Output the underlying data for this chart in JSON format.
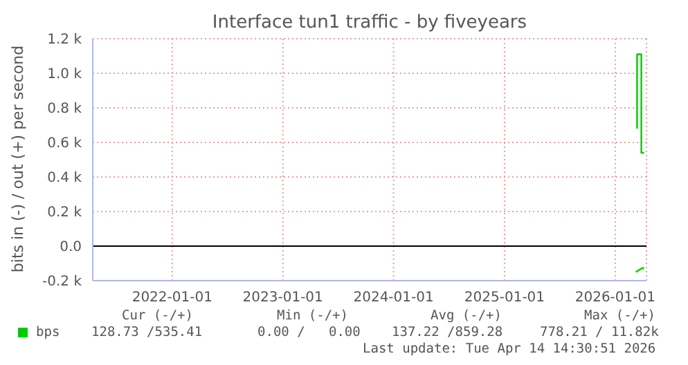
{
  "chart_data": {
    "type": "line",
    "title": "Interface tun1 traffic - by fiveyears",
    "ylabel": "bits in (-) / out (+) per second",
    "series": [
      {
        "name": "bps",
        "color": "#00cc00",
        "x": [
          "2026-03-14",
          "2026-03-14",
          "2026-03-28",
          "2026-03-28",
          "2026-04-06"
        ],
        "values": [
          680,
          1110,
          1110,
          540,
          540
        ]
      },
      {
        "color": "#00cc00",
        "x": [
          "2026-03-10",
          "2026-03-28",
          "2026-04-06"
        ],
        "values": [
          -150,
          -130,
          -125
        ]
      }
    ],
    "xlim": [
      "2021-04-14",
      "2026-04-14"
    ],
    "xticks": [
      "2022-01-01",
      "2023-01-01",
      "2024-01-01",
      "2025-01-01",
      "2026-01-01"
    ],
    "ylim": [
      -200,
      1200
    ],
    "yticks": [
      {
        "value": -200,
        "label": "-0.2 k"
      },
      {
        "value": 0,
        "label": "0.0"
      },
      {
        "value": 200,
        "label": "0.2 k"
      },
      {
        "value": 400,
        "label": "0.4 k"
      },
      {
        "value": 600,
        "label": "0.6 k"
      },
      {
        "value": 800,
        "label": "0.8 k"
      },
      {
        "value": 1000,
        "label": "1.0 k"
      },
      {
        "value": 1200,
        "label": "1.2 k"
      }
    ],
    "ref_lines": [
      {
        "axis": "y",
        "value": 0,
        "color": "#000000"
      }
    ],
    "grid": true,
    "legend": "bottom",
    "annotations": [
      "Cur (-/+)",
      "Min (-/+)",
      "Avg (-/+)",
      "Max (-/+)",
      "128.73 /535.41",
      "0.00 /   0.00",
      "137.22 /859.28",
      "778.21 / 11.82k",
      "Last update: Tue Apr 14 14:30:51 2026"
    ]
  }
}
